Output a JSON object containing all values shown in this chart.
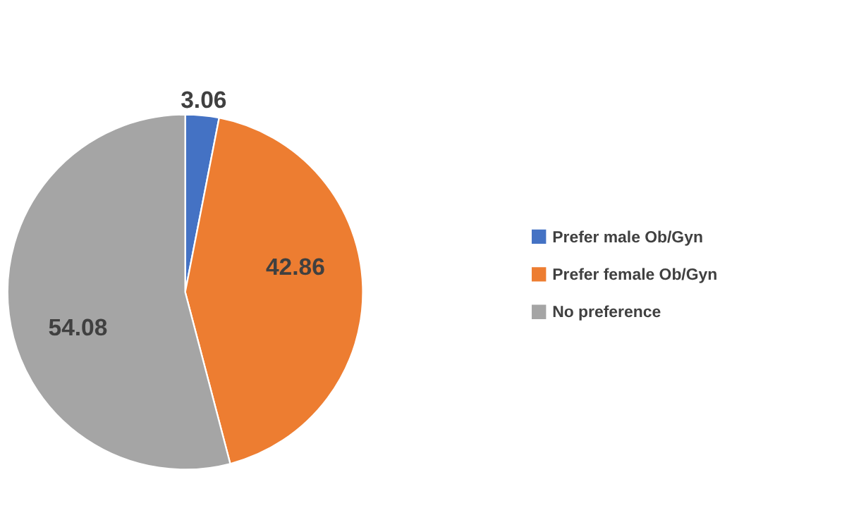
{
  "chart_data": {
    "type": "pie",
    "categories": [
      "Prefer male Ob/Gyn",
      "Prefer female Ob/Gyn",
      "No preference"
    ],
    "values": [
      3.06,
      42.86,
      54.08
    ],
    "colors": [
      "#4472c4",
      "#ed7d31",
      "#a5a5a5"
    ],
    "data_labels": true,
    "legend": "right"
  }
}
